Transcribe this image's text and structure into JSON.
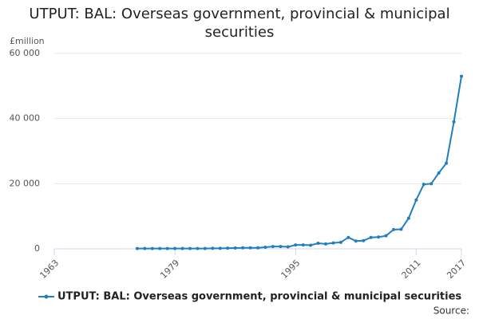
{
  "chart_data": {
    "type": "line",
    "title": "UTPUT: BAL: Overseas government, provincial & municipal securities",
    "y_label": "£million",
    "source": "Source:",
    "x": [
      1974,
      1975,
      1976,
      1977,
      1978,
      1979,
      1980,
      1981,
      1982,
      1983,
      1984,
      1985,
      1986,
      1987,
      1988,
      1989,
      1990,
      1991,
      1992,
      1993,
      1994,
      1995,
      1996,
      1997,
      1998,
      1999,
      2000,
      2001,
      2002,
      2003,
      2004,
      2005,
      2006,
      2007,
      2008,
      2009,
      2010,
      2011,
      2012,
      2013,
      2014,
      2015,
      2016,
      2017
    ],
    "series": [
      {
        "name": "UTPUT: BAL: Overseas government, provincial & municipal securities",
        "color": "#1f7fc1",
        "values": [
          100,
          100,
          100,
          100,
          100,
          100,
          100,
          100,
          100,
          100,
          150,
          150,
          200,
          250,
          300,
          300,
          300,
          500,
          700,
          700,
          600,
          1200,
          1200,
          1100,
          1700,
          1500,
          1800,
          2000,
          3500,
          2400,
          2500,
          3500,
          3600,
          4000,
          5900,
          6000,
          9400,
          15000,
          19800,
          20000,
          23300,
          26300,
          39000,
          53000
        ]
      }
    ],
    "xlim": [
      1963,
      2017
    ],
    "xticks": [
      1963,
      1979,
      1995,
      2011,
      2017
    ],
    "ylim": [
      0,
      60000
    ],
    "yticks": [
      0,
      {
        "value": 20000,
        "label": "20 000"
      },
      {
        "value": 40000,
        "label": "40 000"
      },
      {
        "value": 60000,
        "label": "60 000"
      }
    ],
    "grid": true
  }
}
